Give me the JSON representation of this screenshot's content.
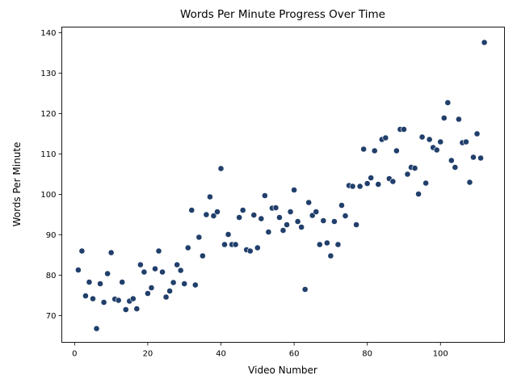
{
  "chart_data": {
    "type": "scatter",
    "title": "Words Per Minute Progress Over Time",
    "xlabel": "Video Number",
    "ylabel": "Words Per Minute",
    "xlim": [
      -3.5,
      117.5
    ],
    "ylim": [
      63.4,
      141.4
    ],
    "xticks": [
      0,
      20,
      40,
      60,
      80,
      100
    ],
    "yticks": [
      70,
      80,
      90,
      100,
      110,
      120,
      130,
      140
    ],
    "grid": false,
    "marker_color": "#213f6b",
    "marker_edge": "#ffffff",
    "points": [
      [
        1,
        81.3
      ],
      [
        2,
        86
      ],
      [
        3,
        74.9
      ],
      [
        4,
        78.3
      ],
      [
        5,
        74.2
      ],
      [
        6,
        66.8
      ],
      [
        7,
        77.9
      ],
      [
        8,
        73.3
      ],
      [
        9,
        80.4
      ],
      [
        10,
        85.6
      ],
      [
        11,
        74.1
      ],
      [
        12,
        73.8
      ],
      [
        13,
        78.3
      ],
      [
        14,
        71.5
      ],
      [
        15,
        73.6
      ],
      [
        16,
        74.2
      ],
      [
        17,
        71.7
      ],
      [
        18,
        82.6
      ],
      [
        19,
        80.8
      ],
      [
        20,
        75.5
      ],
      [
        21,
        76.9
      ],
      [
        22,
        81.6
      ],
      [
        23,
        86
      ],
      [
        24,
        80.8
      ],
      [
        25,
        74.6
      ],
      [
        26,
        76.1
      ],
      [
        27,
        78.2
      ],
      [
        28,
        82.6
      ],
      [
        29,
        81.2
      ],
      [
        30,
        77.9
      ],
      [
        31,
        86.8
      ],
      [
        32,
        96.1
      ],
      [
        33,
        77.6
      ],
      [
        34,
        89.4
      ],
      [
        35,
        84.8
      ],
      [
        36,
        95
      ],
      [
        37,
        99.4
      ],
      [
        38,
        94.7
      ],
      [
        39,
        95.7
      ],
      [
        40,
        106.4
      ],
      [
        41,
        87.6
      ],
      [
        42,
        90.1
      ],
      [
        43,
        87.6
      ],
      [
        44,
        87.6
      ],
      [
        45,
        94.3
      ],
      [
        46,
        96.1
      ],
      [
        47,
        86.3
      ],
      [
        48,
        86
      ],
      [
        49,
        94.9
      ],
      [
        50,
        86.8
      ],
      [
        51,
        94
      ],
      [
        52,
        99.7
      ],
      [
        53,
        90.7
      ],
      [
        54,
        96.6
      ],
      [
        55,
        96.7
      ],
      [
        56,
        94.3
      ],
      [
        57,
        91.1
      ],
      [
        58,
        92.5
      ],
      [
        59,
        95.7
      ],
      [
        60,
        101.1
      ],
      [
        61,
        93.3
      ],
      [
        62,
        91.9
      ],
      [
        63,
        76.5
      ],
      [
        64,
        98
      ],
      [
        65,
        94.8
      ],
      [
        66,
        95.7
      ],
      [
        67,
        87.6
      ],
      [
        68,
        93.5
      ],
      [
        69,
        88
      ],
      [
        70,
        84.8
      ],
      [
        71,
        93.3
      ],
      [
        72,
        87.6
      ],
      [
        73,
        97.3
      ],
      [
        74,
        94.7
      ],
      [
        75,
        102.2
      ],
      [
        76,
        102
      ],
      [
        77,
        92.5
      ],
      [
        78,
        102
      ],
      [
        79,
        111.2
      ],
      [
        80,
        102.7
      ],
      [
        81,
        104.1
      ],
      [
        82,
        110.8
      ],
      [
        83,
        102.5
      ],
      [
        84,
        113.6
      ],
      [
        85,
        114
      ],
      [
        86,
        103.9
      ],
      [
        87,
        103.2
      ],
      [
        88,
        110.8
      ],
      [
        89,
        116.1
      ],
      [
        90,
        116.1
      ],
      [
        91,
        105
      ],
      [
        92,
        106.7
      ],
      [
        93,
        106.5
      ],
      [
        94,
        100.1
      ],
      [
        95,
        114.2
      ],
      [
        96,
        102.8
      ],
      [
        97,
        113.6
      ],
      [
        98,
        111.6
      ],
      [
        99,
        111
      ],
      [
        100,
        113
      ],
      [
        101,
        118.9
      ],
      [
        102,
        122.7
      ],
      [
        103,
        108.4
      ],
      [
        104,
        106.7
      ],
      [
        105,
        118.6
      ],
      [
        106,
        112.8
      ],
      [
        107,
        113
      ],
      [
        108,
        103
      ],
      [
        109,
        109.2
      ],
      [
        110,
        115
      ],
      [
        111,
        109
      ],
      [
        112,
        137.6
      ]
    ]
  }
}
